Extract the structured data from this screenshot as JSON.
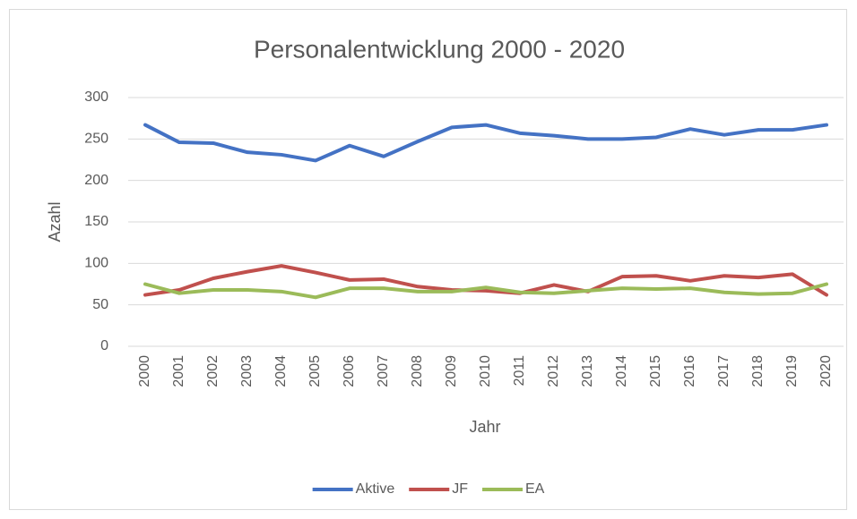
{
  "chart_data": {
    "type": "line",
    "title": "Personalentwicklung 2000 - 2020",
    "x_label": "Jahr",
    "y_label": "Azahl",
    "categories": [
      "2000",
      "2001",
      "2002",
      "2003",
      "2004",
      "2005",
      "2006",
      "2007",
      "2008",
      "2009",
      "2010",
      "2011",
      "2012",
      "2013",
      "2014",
      "2015",
      "2016",
      "2017",
      "2018",
      "2019",
      "2020"
    ],
    "series": [
      {
        "name": "Aktive",
        "color": "#4472c4",
        "values": [
          267,
          246,
          245,
          234,
          231,
          224,
          242,
          229,
          247,
          264,
          267,
          257,
          254,
          250,
          250,
          252,
          262,
          255,
          261,
          261,
          267
        ]
      },
      {
        "name": "JF",
        "color": "#c0504d",
        "values": [
          62,
          68,
          82,
          90,
          97,
          89,
          80,
          81,
          72,
          68,
          67,
          64,
          74,
          66,
          84,
          85,
          79,
          85,
          83,
          87,
          62
        ]
      },
      {
        "name": "EA",
        "color": "#9bbb59",
        "values": [
          75,
          64,
          68,
          68,
          66,
          59,
          70,
          70,
          66,
          66,
          71,
          65,
          64,
          67,
          70,
          69,
          70,
          65,
          63,
          64,
          75
        ]
      }
    ],
    "ylim": [
      0,
      300
    ],
    "yticks": [
      0,
      50,
      100,
      150,
      200,
      250,
      300
    ],
    "grid": true,
    "legend": "bottom"
  }
}
